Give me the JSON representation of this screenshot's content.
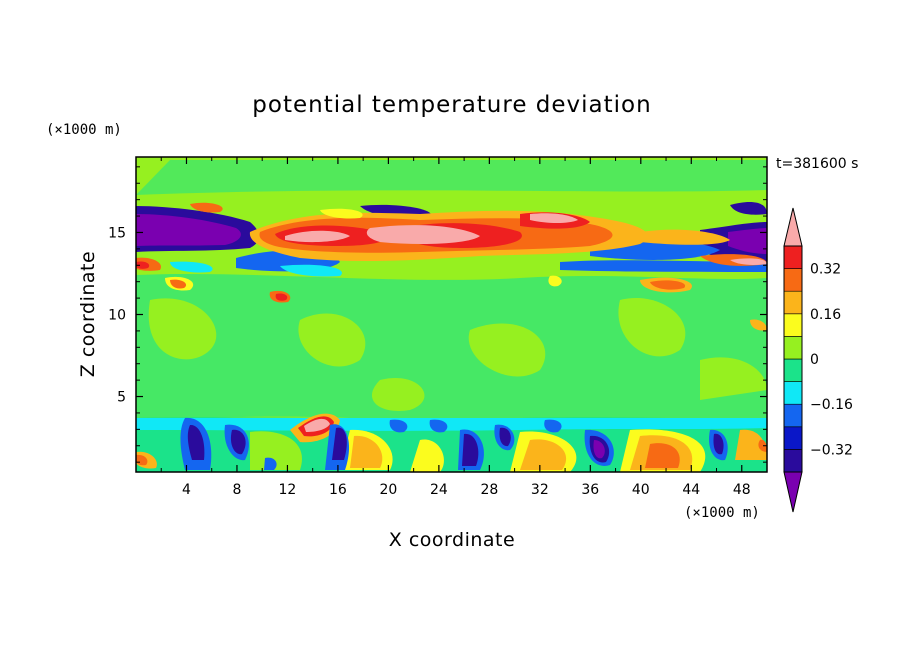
{
  "chart_data": {
    "type": "heatmap",
    "title": "potential temperature deviation",
    "xlabel": "X coordinate",
    "ylabel": "Z coordinate",
    "x_unit": "(×1000 m)",
    "z_unit": "(×1000 m)",
    "time_label": "t=381600 s",
    "xlim": [
      0,
      50
    ],
    "ylim": [
      0.4,
      19.6
    ],
    "x_ticks": [
      4,
      8,
      12,
      16,
      20,
      24,
      28,
      32,
      36,
      40,
      44,
      48
    ],
    "y_ticks": [
      5,
      10,
      15
    ],
    "colorbar": {
      "levels": [
        -0.4,
        -0.32,
        -0.24,
        -0.16,
        -0.08,
        0,
        0.08,
        0.16,
        0.24,
        0.32,
        0.4
      ],
      "tick_labels": [
        "0.32",
        "0.16",
        "0",
        "−0.16",
        "−0.32"
      ],
      "tick_values": [
        0.32,
        0.16,
        0,
        -0.16,
        -0.32
      ],
      "colors": [
        "#7a00b0",
        "#2a0b9c",
        "#0a17c8",
        "#1466f0",
        "#10e8f6",
        "#1be38a",
        "#96f020",
        "#fbfc1e",
        "#fbb41b",
        "#f76a14",
        "#ee2020",
        "#f9aaaa"
      ],
      "extend": "both"
    }
  }
}
